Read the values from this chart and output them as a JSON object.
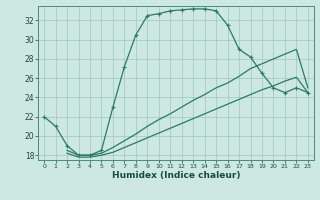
{
  "xlabel": "Humidex (Indice chaleur)",
  "bg_color": "#cce8e0",
  "grid_color": "#a0c8bc",
  "line_color": "#2a7a6a",
  "xlim": [
    -0.5,
    23.5
  ],
  "ylim": [
    17.5,
    33.5
  ],
  "xticks": [
    0,
    1,
    2,
    3,
    4,
    5,
    6,
    7,
    8,
    9,
    10,
    11,
    12,
    13,
    14,
    15,
    16,
    17,
    18,
    19,
    20,
    21,
    22,
    23
  ],
  "yticks": [
    18,
    20,
    22,
    24,
    26,
    28,
    30,
    32
  ],
  "line1_x": [
    0,
    1,
    2,
    3,
    4,
    5,
    6,
    7,
    8,
    9,
    10,
    11,
    12,
    13,
    14,
    15,
    16,
    17,
    18,
    19,
    20,
    21,
    22,
    23
  ],
  "line1_y": [
    22.0,
    21.0,
    19.0,
    18.0,
    18.0,
    18.5,
    23.0,
    27.2,
    30.5,
    32.5,
    32.7,
    33.0,
    33.1,
    33.2,
    33.2,
    33.0,
    31.5,
    29.0,
    28.2,
    26.5,
    25.0,
    24.5,
    25.0,
    24.5
  ],
  "line1_markers": [
    true,
    true,
    true,
    true,
    true,
    true,
    true,
    true,
    true,
    true,
    true,
    true,
    true,
    true,
    true,
    true,
    true,
    true,
    true,
    true,
    true,
    true,
    true,
    true
  ],
  "line2_x": [
    2,
    3,
    4,
    5,
    6,
    7,
    8,
    9,
    10,
    11,
    12,
    13,
    14,
    15,
    16,
    17,
    18,
    19,
    20,
    21,
    22,
    23
  ],
  "line2_y": [
    18.5,
    18.0,
    18.0,
    18.2,
    18.8,
    19.5,
    20.2,
    21.0,
    21.7,
    22.3,
    23.0,
    23.7,
    24.3,
    25.0,
    25.5,
    26.2,
    27.0,
    27.5,
    28.0,
    28.5,
    29.0,
    25.0
  ],
  "line3_x": [
    2,
    3,
    4,
    5,
    6,
    7,
    8,
    9,
    10,
    11,
    12,
    13,
    14,
    15,
    16,
    17,
    18,
    19,
    20,
    21,
    22,
    23
  ],
  "line3_y": [
    18.2,
    17.8,
    17.8,
    18.0,
    18.3,
    18.8,
    19.3,
    19.8,
    20.3,
    20.8,
    21.3,
    21.8,
    22.3,
    22.8,
    23.3,
    23.8,
    24.3,
    24.8,
    25.2,
    25.7,
    26.1,
    24.5
  ]
}
